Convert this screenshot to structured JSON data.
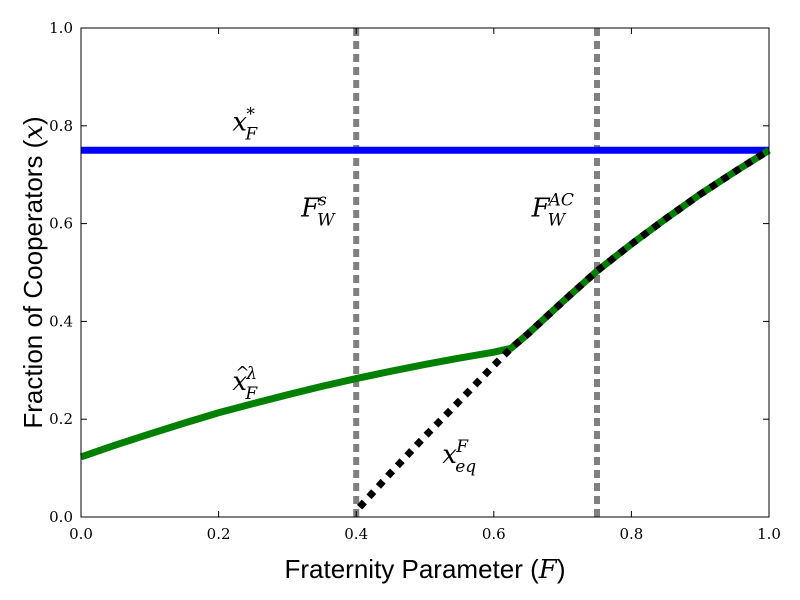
{
  "chart_data": {
    "type": "line",
    "title": "",
    "xlabel_text": "Fraternity Parameter (",
    "xlabel_math": "F",
    "xlabel_close": ")",
    "ylabel_text": "Fraction of Cooperators (",
    "ylabel_math": "x",
    "ylabel_close": ")",
    "xlim": [
      0.0,
      1.0
    ],
    "ylim": [
      0.0,
      1.0
    ],
    "xticks": [
      "0.0",
      "0.2",
      "0.4",
      "0.6",
      "0.8",
      "1.0"
    ],
    "yticks": [
      "0.0",
      "0.2",
      "0.4",
      "0.6",
      "0.8",
      "1.0"
    ],
    "grid": false,
    "series": [
      {
        "key": "x_F_star",
        "style": "solid",
        "color": "#0000ff",
        "x": [
          0.0,
          1.0
        ],
        "y": [
          0.75,
          0.75
        ]
      },
      {
        "key": "x_hat_F_lambda",
        "style": "solid",
        "color": "#008000",
        "x": [
          0.0,
          0.05,
          0.1,
          0.15,
          0.2,
          0.25,
          0.3,
          0.35,
          0.4,
          0.45,
          0.5,
          0.55,
          0.6,
          0.625,
          0.65,
          0.7,
          0.75,
          0.8,
          0.85,
          0.9,
          0.95,
          1.0
        ],
        "y": [
          0.123,
          0.147,
          0.17,
          0.192,
          0.213,
          0.232,
          0.25,
          0.267,
          0.283,
          0.298,
          0.312,
          0.325,
          0.337,
          0.345,
          0.375,
          0.44,
          0.503,
          0.558,
          0.61,
          0.66,
          0.706,
          0.75
        ]
      },
      {
        "key": "x_eq_F",
        "style": "dotted",
        "color": "#000000",
        "x": [
          0.405,
          0.45,
          0.5,
          0.55,
          0.6,
          0.625,
          0.65,
          0.7,
          0.75,
          0.8,
          0.85,
          0.9,
          0.95,
          1.0
        ],
        "y": [
          0.02,
          0.09,
          0.165,
          0.237,
          0.31,
          0.345,
          0.375,
          0.44,
          0.503,
          0.558,
          0.61,
          0.66,
          0.706,
          0.75
        ]
      }
    ],
    "vlines": [
      {
        "key": "F_W_s",
        "x": 0.4,
        "style": "dashed",
        "color": "#808080"
      },
      {
        "key": "F_W_AC",
        "x": 0.75,
        "style": "dashed",
        "color": "#808080"
      }
    ],
    "annotations": [
      {
        "key": "x_F_star",
        "main": "x",
        "sub": "F",
        "sup": "*",
        "accent": "",
        "x": 0.22,
        "y": 0.79,
        "color": "#000000"
      },
      {
        "key": "F_W_s",
        "main": "F",
        "sub": "W",
        "sup": "s",
        "accent": "",
        "x": 0.32,
        "y": 0.615,
        "color": "#000000"
      },
      {
        "key": "F_W_AC",
        "main": "F",
        "sub": "W",
        "sup": "AC",
        "accent": "",
        "x": 0.655,
        "y": 0.615,
        "color": "#000000"
      },
      {
        "key": "x_hat_F_lambda",
        "main": "x",
        "sub": "F",
        "sup": "λ",
        "accent": "^",
        "x": 0.22,
        "y": 0.26,
        "color": "#000000"
      },
      {
        "key": "x_eq_F",
        "main": "x",
        "sub": "eq",
        "sup": "F",
        "accent": "",
        "x": 0.525,
        "y": 0.11,
        "color": "#000000"
      }
    ]
  }
}
